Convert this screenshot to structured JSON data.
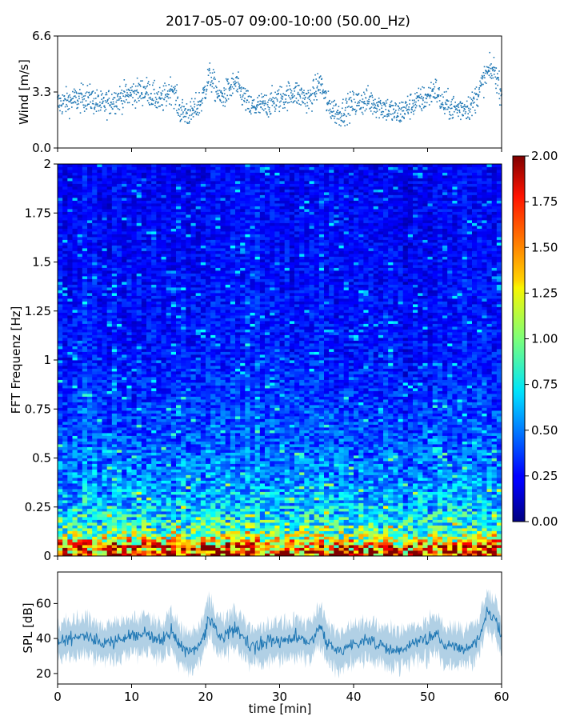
{
  "title": "2017-05-07 09:00-10:00 (50.00_Hz)",
  "chart_data": [
    {
      "id": "wind",
      "type": "scatter",
      "ylabel": "Wind [m/s]",
      "xlim": [
        0,
        60
      ],
      "ylim": [
        0,
        6.6
      ],
      "yticks": [
        "0.0",
        "3.3",
        "6.6"
      ],
      "marker_color": "#1f77b4",
      "series": [
        {
          "x": [
            0,
            2,
            4,
            6,
            8,
            10,
            12,
            14,
            15.5,
            16.5,
            18,
            19.5,
            20.5,
            22,
            24,
            26,
            28,
            30,
            32,
            34,
            35.5,
            36.5,
            38,
            40,
            42,
            44,
            46,
            48,
            50,
            51,
            52,
            54,
            56,
            57,
            58,
            59,
            60
          ],
          "y": [
            2.6,
            2.8,
            3.0,
            2.5,
            2.9,
            3.2,
            3.4,
            2.7,
            3.6,
            2.2,
            2.0,
            2.8,
            4.3,
            2.9,
            3.8,
            2.4,
            2.5,
            2.9,
            3.3,
            2.8,
            3.9,
            2.5,
            2.0,
            2.6,
            2.8,
            2.4,
            2.0,
            2.6,
            3.0,
            3.5,
            2.6,
            2.3,
            2.5,
            3.4,
            4.4,
            4.6,
            3.2
          ]
        }
      ]
    },
    {
      "id": "spectrogram",
      "type": "heatmap",
      "ylabel": "FFT Frequenz [Hz]",
      "xlim": [
        0,
        60
      ],
      "ylim": [
        0,
        2
      ],
      "yticks": [
        "0",
        "0.25",
        "0.5",
        "0.75",
        "1",
        "1.25",
        "1.5",
        "1.75",
        "2"
      ],
      "colormap": "jet",
      "colorbar": {
        "range": [
          0,
          2
        ],
        "ticks": [
          "0.00",
          "0.25",
          "0.50",
          "0.75",
          "1.00",
          "1.25",
          "1.50",
          "1.75",
          "2.00"
        ]
      },
      "frequency_profile": {
        "freq": [
          0,
          0.05,
          0.1,
          0.15,
          0.25,
          0.4,
          0.6,
          0.8,
          1.0,
          1.5,
          2.0
        ],
        "mean_level": [
          1.8,
          1.5,
          1.05,
          0.85,
          0.65,
          0.52,
          0.42,
          0.36,
          0.3,
          0.26,
          0.24
        ]
      }
    },
    {
      "id": "spl",
      "type": "line",
      "ylabel": "SPL [dB]",
      "xlabel": "time [min]",
      "xlim": [
        0,
        60
      ],
      "ylim": [
        14,
        78
      ],
      "yticks": [
        "20",
        "40",
        "60"
      ],
      "xticks": [
        "0",
        "10",
        "20",
        "30",
        "40",
        "50",
        "60"
      ],
      "line_color": "#1f77b4",
      "series": [
        {
          "x": [
            0,
            2,
            4,
            6,
            8,
            10,
            12,
            14,
            15.5,
            16.5,
            18,
            19.5,
            20.5,
            22,
            24,
            26,
            28,
            30,
            32,
            34,
            35.5,
            36.5,
            38,
            40,
            42,
            44,
            46,
            48,
            50,
            51,
            52,
            54,
            56,
            57,
            58,
            59,
            60
          ],
          "y": [
            38,
            40,
            42,
            37,
            39,
            41,
            43,
            38,
            45,
            35,
            32,
            38,
            52,
            40,
            46,
            36,
            37,
            39,
            41,
            38,
            47,
            37,
            33,
            37,
            39,
            36,
            33,
            37,
            40,
            43,
            37,
            35,
            36,
            42,
            55,
            52,
            42
          ]
        }
      ]
    }
  ]
}
